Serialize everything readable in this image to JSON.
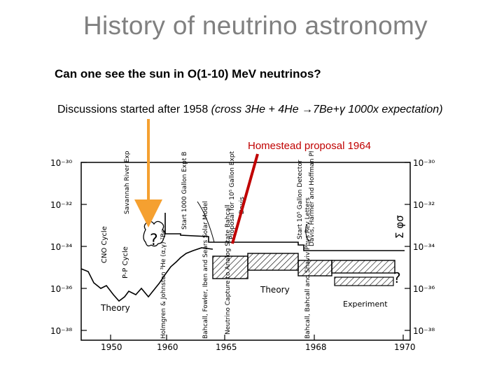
{
  "slide": {
    "title": "History of neutrino astronomy",
    "question": "Can one see the sun in O(1-10) MeV neutrinos?",
    "discussion_main": "Discussions started after 1958",
    "discussion_paren": "(cross 3He + 4He →7Be+γ 1000x expectation)",
    "proposal_label": "Homestead proposal 1964"
  },
  "colors": {
    "arrow_orange": "#f5a030",
    "arrow_red": "#c00000",
    "title_gray": "#808080"
  },
  "figure": {
    "y_ticks_left": [
      "10⁻³⁰",
      "10⁻³²",
      "10⁻³⁴",
      "10⁻³⁶",
      "10⁻³⁸"
    ],
    "y_ticks_right": [
      "10⁻³⁰",
      "10⁻³²",
      "10⁻³⁴",
      "10⁻³⁶",
      "10⁻³⁸"
    ],
    "x_ticks": [
      "1950",
      "1960",
      "1965",
      "1968",
      "1970"
    ],
    "right_axis_label": "Σ φσ",
    "annotations": {
      "savannah": "Savannah River Expt. Davis",
      "start1000": "Start 1000 Gallon Expt Barberton Mine",
      "proposal105": "Proposal for 10⁵ Gallon Expt.",
      "davis": "Davis",
      "start105": "Start 10⁵ Gallon Detector",
      "dhh": "Davis, Harmer and Hoffman Phys. Rev. Letters",
      "cno": "CNO Cycle",
      "pp": "P-P Cycle",
      "hj": "Holmgren & Johnston ³He (α,γ) ⁷Be",
      "bfs": "Bahcall, Fowler, Iben and Sears Solar Model",
      "nca": "Neutrino Capture to Analog State Bahcall",
      "bbs": "Bahcall, Bahcall and Shaviv Phys Rev Letters",
      "theory_left": "Theory",
      "theory_mid": "Theory",
      "experiment": "Experiment",
      "question_mark": "?"
    }
  }
}
